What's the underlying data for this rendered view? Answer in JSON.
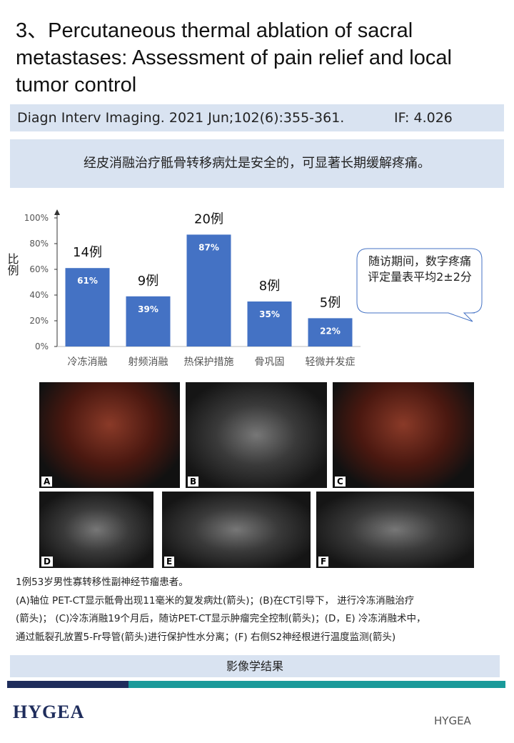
{
  "header": {
    "title": "3、Percutaneous thermal ablation of sacral metastases: Assessment of pain relief and local tumor control"
  },
  "journal": {
    "citation": "Diagn Interv Imaging. 2021 Jun;102(6):355-361.",
    "impact_factor": "IF:  4.026"
  },
  "summary": "经皮消融治疗骶骨转移病灶是安全的，可显著长期缓解疼痛。",
  "chart_data": {
    "type": "bar",
    "y_label": "比例",
    "categories": [
      "冷冻消融",
      "射频消融",
      "热保护措施",
      "骨巩固",
      "轻微并发症"
    ],
    "values": [
      61,
      39,
      87,
      35,
      22
    ],
    "value_labels": [
      "61%",
      "39%",
      "87%",
      "35%",
      "22%"
    ],
    "annotations": [
      "14例",
      "9例",
      "20例",
      "8例",
      "5例"
    ],
    "color": "#4472c4",
    "ylim": [
      0,
      100
    ],
    "yticks": [
      {
        "value": 0,
        "label": "0%"
      },
      {
        "value": 20,
        "label": "20%"
      },
      {
        "value": 40,
        "label": "40%"
      },
      {
        "value": 60,
        "label": "60%"
      },
      {
        "value": 80,
        "label": "80%"
      },
      {
        "value": 100,
        "label": "100%"
      }
    ],
    "callout": "随访期间，数字疼痛评定量表平均2±2分"
  },
  "figure": {
    "panels": [
      "A",
      "B",
      "C",
      "D",
      "E",
      "F"
    ]
  },
  "caption": [
    "1例53岁男性寡转移性副神经节瘤患者。",
    "(A)轴位 PET-CT显示骶骨出现11毫米的复发病灶(箭头)；(B)在CT引导下， 进行冷冻消融治疗",
    "(箭头)； (C)冷冻消融19个月后，随访PET-CT显示肿瘤完全控制(箭头)；(D，E) 冷冻消融术中，",
    "通过骶裂孔放置5-Fr导管(箭头)进行保护性水分离；(F) 右侧S2神经根进行温度监测(箭头)"
  ],
  "section": "影像学结果",
  "footer": {
    "logo": "HYGEA",
    "account": "HYGEA"
  }
}
